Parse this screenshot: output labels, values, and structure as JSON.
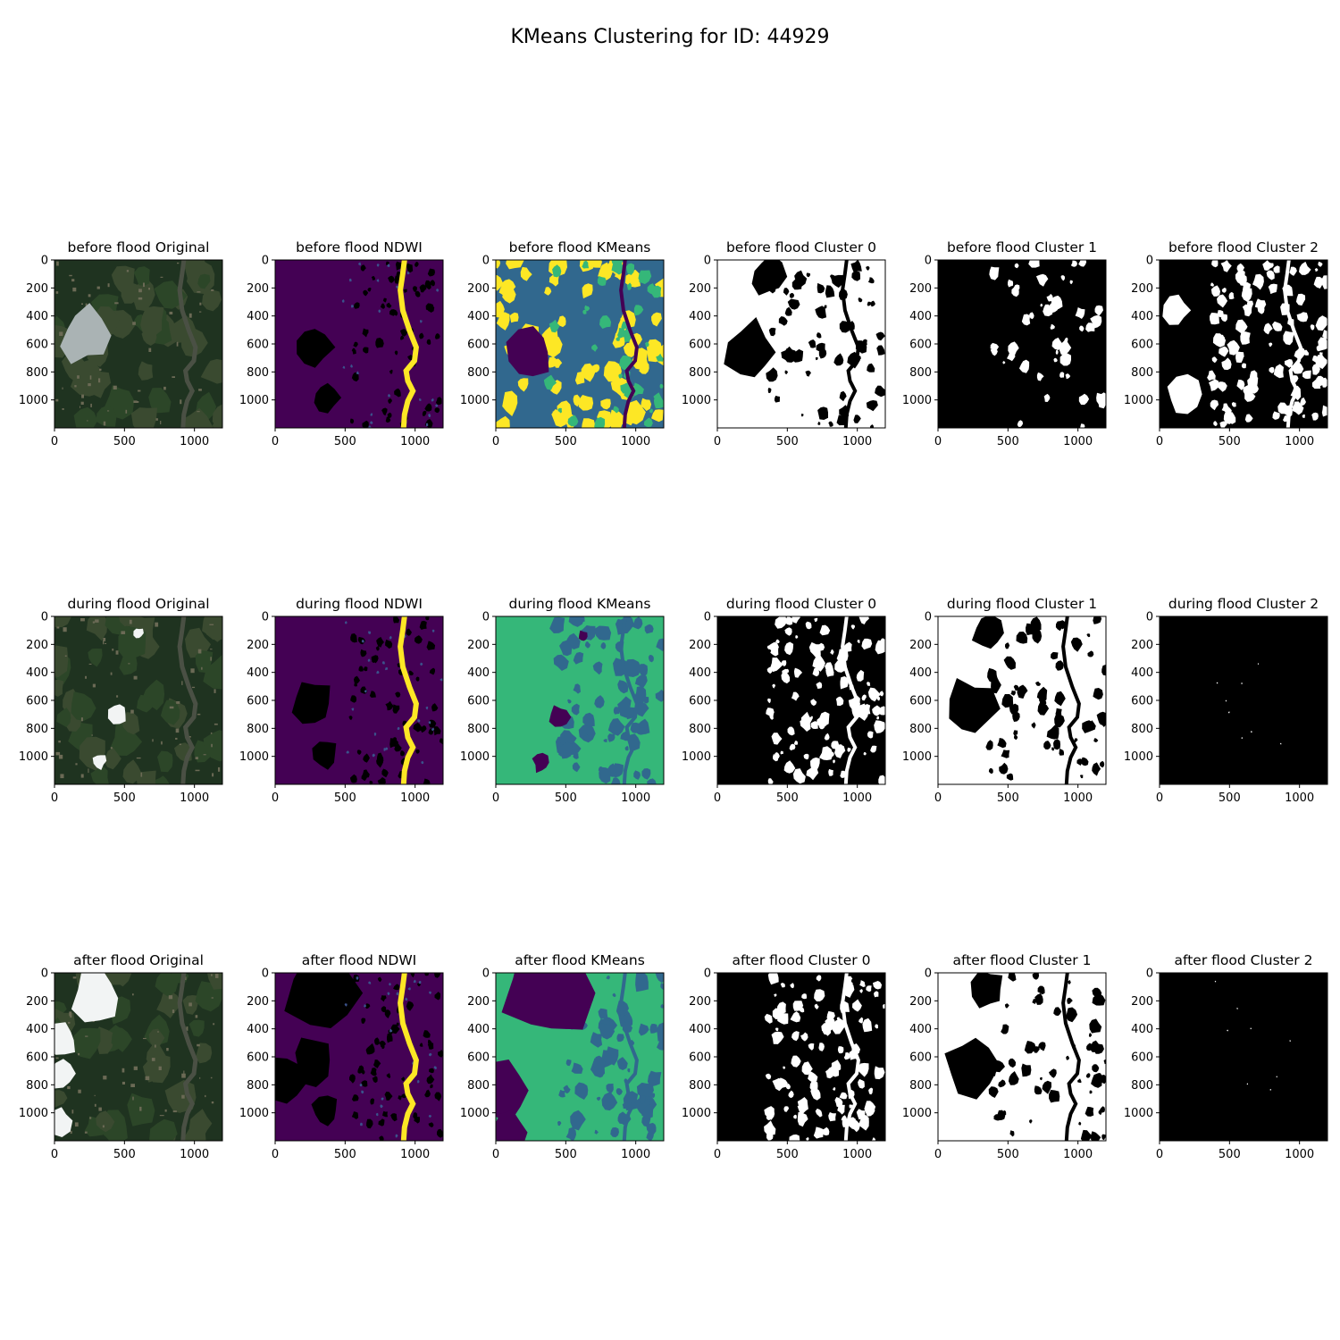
{
  "chart_data": {
    "type": "image-grid",
    "title": "KMeans Clustering for ID: 44929",
    "rows": [
      "before flood",
      "during flood",
      "after flood"
    ],
    "columns": [
      "Original",
      "NDWI",
      "KMeans",
      "Cluster 0",
      "Cluster 1",
      "Cluster 2"
    ],
    "panel_titles": [
      [
        "before flood Original",
        "before flood NDWI",
        "before flood KMeans",
        "before flood Cluster 0",
        "before flood Cluster 1",
        "before flood Cluster 2"
      ],
      [
        "during flood Original",
        "during flood NDWI",
        "during flood KMeans",
        "during flood Cluster 0",
        "during flood Cluster 1",
        "during flood Cluster 2"
      ],
      [
        "after flood Original",
        "after flood NDWI",
        "after flood KMeans",
        "after flood Cluster 0",
        "after flood Cluster 1",
        "after flood Cluster 2"
      ]
    ],
    "image_extent": [
      0,
      1200
    ],
    "xticks": [
      0,
      500,
      1000
    ],
    "yticks": [
      0,
      200,
      400,
      600,
      800,
      1000
    ],
    "colors": {
      "ndwi_low": "#440154",
      "ndwi_high": "#fde725",
      "ndwi_mid": "#3b528b",
      "kmeans_0": "#440154",
      "kmeans_1": "#31688e",
      "kmeans_2": "#35b779",
      "kmeans_3": "#fde725",
      "mask_on": "#ffffff",
      "mask_off": "#000000",
      "veg_dark": "#1f3320",
      "veg_mid": "#2c4628",
      "cloud": "#f2f4f4",
      "river": "#4a5044"
    },
    "panel_styles": [
      [
        "rgb",
        "ndwi",
        "kmeans4",
        "mask_mostly_white",
        "mask_mostly_black",
        "mask_mixed"
      ],
      [
        "rgb",
        "ndwi",
        "kmeans3",
        "mask_mixed_dark",
        "mask_mostly_white",
        "mask_black"
      ],
      [
        "rgb_cloudy",
        "ndwi",
        "kmeans3",
        "mask_mixed_dark",
        "mask_mostly_white",
        "mask_black"
      ]
    ]
  }
}
